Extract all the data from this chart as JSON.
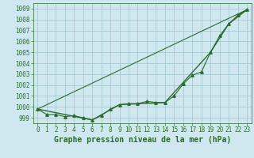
{
  "x_ticks": [
    0,
    1,
    2,
    3,
    4,
    5,
    6,
    7,
    8,
    9,
    10,
    11,
    12,
    13,
    14,
    15,
    16,
    17,
    18,
    19,
    20,
    21,
    22,
    23
  ],
  "ylim": [
    998.5,
    1009.5
  ],
  "yticks": [
    999,
    1000,
    1001,
    1002,
    1003,
    1004,
    1005,
    1006,
    1007,
    1008,
    1009
  ],
  "line_main": {
    "x": [
      0,
      1,
      2,
      3,
      4,
      5,
      6,
      7,
      8,
      9,
      10,
      11,
      12,
      13,
      14,
      15,
      16,
      17,
      18,
      19,
      20,
      21,
      22,
      23
    ],
    "y": [
      999.8,
      999.3,
      999.3,
      999.1,
      999.2,
      999.0,
      998.8,
      999.2,
      999.8,
      1000.2,
      1000.3,
      1000.3,
      1000.5,
      1000.4,
      1000.4,
      1001.0,
      1002.1,
      1002.9,
      1003.2,
      1005.0,
      1006.5,
      1007.6,
      1008.4,
      1008.9
    ],
    "color": "#2d6a2d",
    "marker": "^",
    "markersize": 2.5,
    "linewidth": 0.8,
    "linestyle": "-"
  },
  "line_envelope": {
    "x": [
      0,
      6,
      9,
      14,
      19,
      21,
      23
    ],
    "y": [
      999.8,
      998.8,
      1000.2,
      1000.4,
      1005.0,
      1007.6,
      1008.9
    ],
    "color": "#2d6a2d",
    "linewidth": 1.0,
    "linestyle": "-"
  },
  "line_straight": {
    "x": [
      0,
      23
    ],
    "y": [
      999.8,
      1008.9
    ],
    "color": "#2d6a2d",
    "linewidth": 0.8,
    "linestyle": "-"
  },
  "bg_color": "#cfe8f0",
  "grid_color": "#a0c4cc",
  "line_color": "#2d6a2d",
  "xlabel": "Graphe pression niveau de la mer (hPa)",
  "xlabel_fontsize": 7,
  "tick_fontsize": 5.5
}
